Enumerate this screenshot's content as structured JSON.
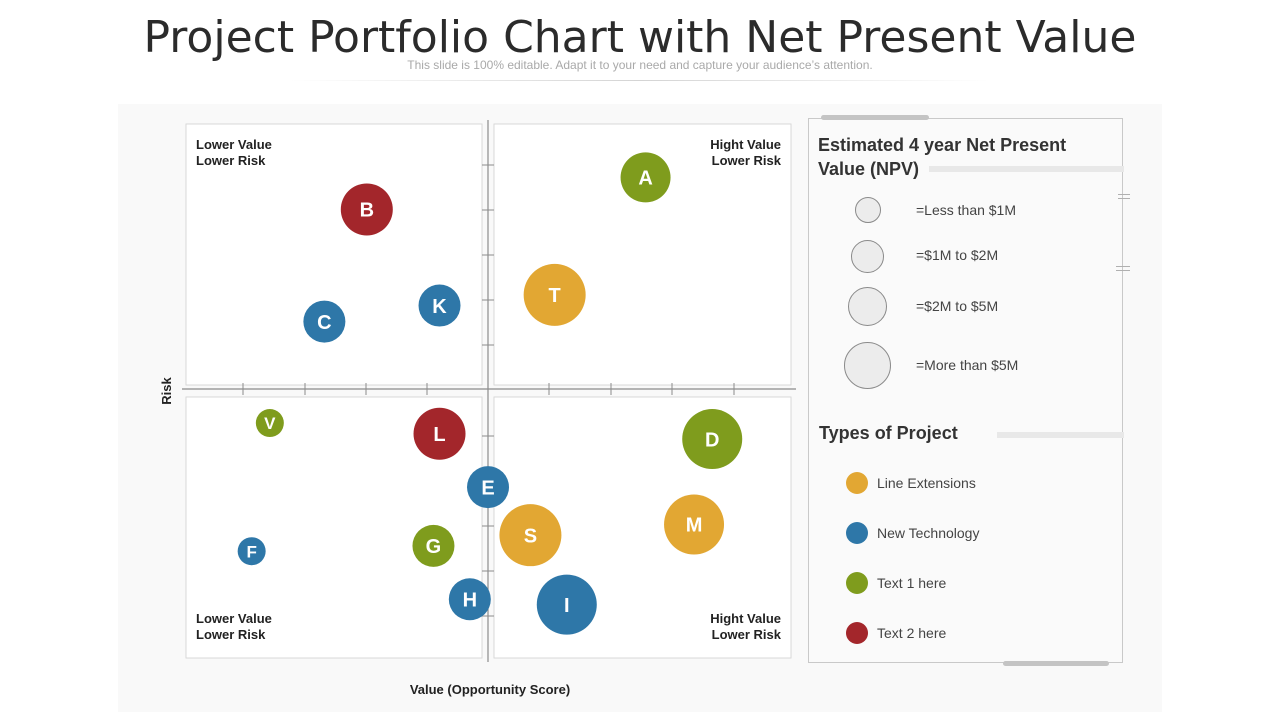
{
  "header": {
    "title": "Project Portfolio Chart with Net Present Value",
    "subtitle": "This slide is 100% editable. Adapt it to your need and capture your audience’s attention."
  },
  "chart_data": {
    "type": "scatter",
    "title": "Project Portfolio Chart with Net Present Value",
    "xlabel": "Value (Opportunity Score)",
    "ylabel": "Risk",
    "xlim": [
      0,
      100
    ],
    "ylim": [
      0,
      100
    ],
    "grid": false,
    "quadrants": {
      "top_left": [
        "Lower Value",
        "Lower Risk"
      ],
      "top_right": [
        "Hight Value",
        "Lower Risk"
      ],
      "bottom_left": [
        "Lower Value",
        "Lower Risk"
      ],
      "bottom_right": [
        "Hight Value",
        "Lower Risk"
      ]
    },
    "points": [
      {
        "label": "A",
        "x": 76,
        "y": 90,
        "type": "Text 1 here",
        "npv": "=$1M to $2M"
      },
      {
        "label": "B",
        "x": 30,
        "y": 84,
        "type": "Text 2 here",
        "npv": "=$1M to $2M"
      },
      {
        "label": "C",
        "x": 23,
        "y": 63,
        "type": "New Technology",
        "npv": "=Less than $1M"
      },
      {
        "label": "K",
        "x": 42,
        "y": 66,
        "type": "New Technology",
        "npv": "=Less than $1M"
      },
      {
        "label": "T",
        "x": 61,
        "y": 68,
        "type": "Line Extensions",
        "npv": "=$2M to $5M"
      },
      {
        "label": "V",
        "x": 14,
        "y": 44,
        "type": "Text 1 here",
        "npv": "=Less than $1M"
      },
      {
        "label": "L",
        "x": 42,
        "y": 42,
        "type": "Text 2 here",
        "npv": "=$1M to $2M"
      },
      {
        "label": "D",
        "x": 87,
        "y": 41,
        "type": "Text 1 here",
        "npv": "=$2M to $5M"
      },
      {
        "label": "E",
        "x": 50,
        "y": 32,
        "type": "New Technology",
        "npv": "=Less than $1M"
      },
      {
        "label": "F",
        "x": 11,
        "y": 20,
        "type": "New Technology",
        "npv": "=Less than $1M"
      },
      {
        "label": "G",
        "x": 41,
        "y": 21,
        "type": "Text 1 here",
        "npv": "=Less than $1M"
      },
      {
        "label": "S",
        "x": 57,
        "y": 23,
        "type": "Line Extensions",
        "npv": "=$2M to $5M"
      },
      {
        "label": "M",
        "x": 84,
        "y": 25,
        "type": "Line Extensions",
        "npv": "=$2M to $5M"
      },
      {
        "label": "H",
        "x": 47,
        "y": 11,
        "type": "New Technology",
        "npv": "=Less than $1M"
      },
      {
        "label": "I",
        "x": 63,
        "y": 10,
        "type": "New Technology",
        "npv": "=More than $5M"
      }
    ]
  },
  "legend": {
    "npv_title": "Estimated 4 year Net Present Value (NPV)",
    "npv_items": [
      "=Less than $1M",
      "=$1M to $2M",
      "=$2M to $5M",
      "=More than $5M"
    ],
    "types_title": "Types of Project",
    "types": [
      {
        "label": "Line Extensions",
        "color": "#e2a733"
      },
      {
        "label": "New Technology",
        "color": "#2e77a8"
      },
      {
        "label": "Text 1 here",
        "color": "#7f9c1d"
      },
      {
        "label": "Text 2 here",
        "color": "#a3262b"
      }
    ]
  }
}
